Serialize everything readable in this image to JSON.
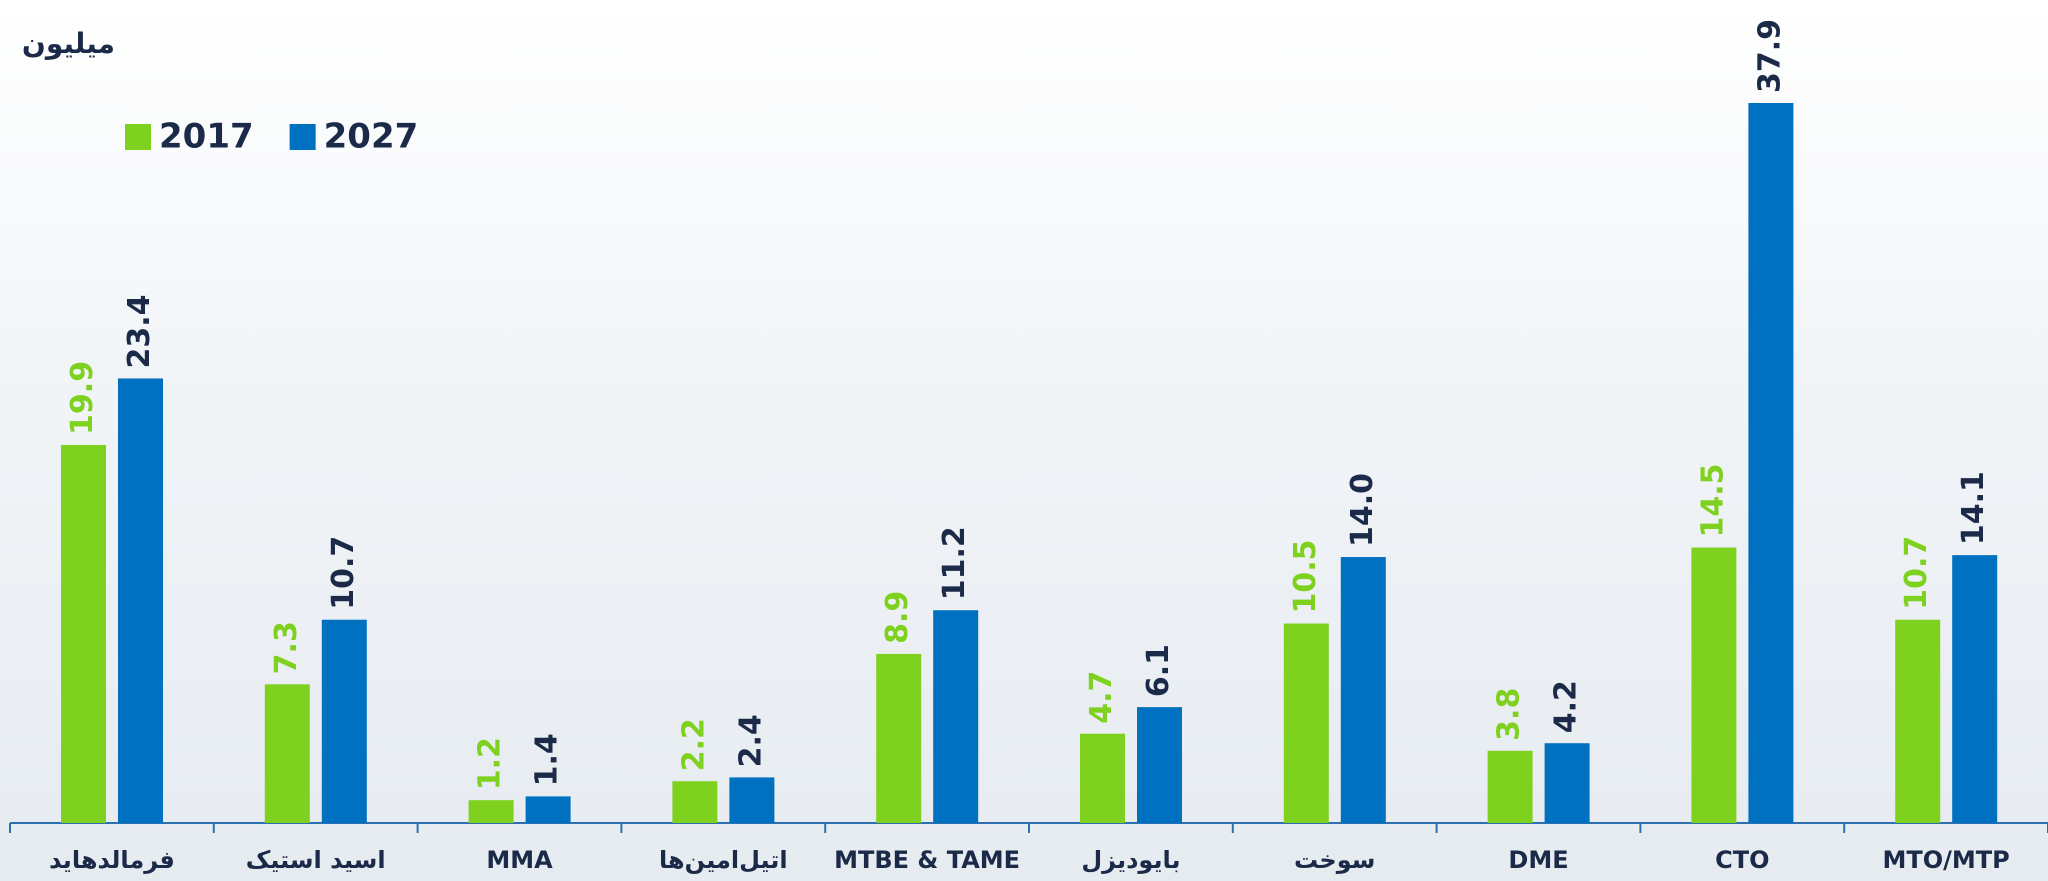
{
  "chart_data": {
    "type": "bar",
    "title": "میلیون",
    "categories": [
      "فرمالدهاید",
      "اسید استیک",
      "MMA",
      "اتیل‌امین‌ها",
      "MTBE & TAME",
      "بایودیزل",
      "سوخت",
      "DME",
      "CTO",
      "MTO/MTP"
    ],
    "series": [
      {
        "name": "2017",
        "color": "#7fd11f",
        "values": [
          19.9,
          7.3,
          1.2,
          2.2,
          8.9,
          4.7,
          10.5,
          3.8,
          14.5,
          10.7
        ],
        "value_labels": [
          "19.9",
          "7.3",
          "1.2",
          "2.2",
          "8.9",
          "4.7",
          "10.5",
          "3.8",
          "14.5",
          "10.7"
        ]
      },
      {
        "name": "2027",
        "color": "#0070c0",
        "values": [
          23.4,
          10.7,
          1.4,
          2.4,
          11.2,
          6.1,
          14.0,
          4.2,
          37.9,
          14.1
        ],
        "value_labels": [
          "23.4",
          "10.7",
          "1.4",
          "2.4",
          "11.2",
          "6.1",
          "14.0",
          "4.2",
          "37.9",
          "14.1"
        ]
      }
    ],
    "legend": "top-left"
  }
}
